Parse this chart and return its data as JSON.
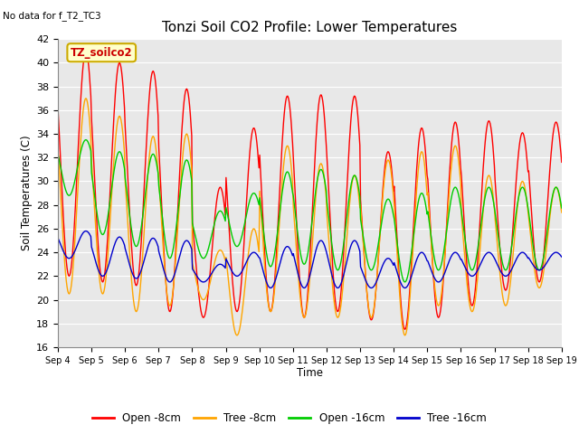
{
  "title": "Tonzi Soil CO2 Profile: Lower Temperatures",
  "annotation": "No data for f_T2_TC3",
  "legend_box_label": "TZ_soilco2",
  "ylabel": "Soil Temperatures (C)",
  "xlabel": "Time",
  "ylim": [
    16,
    42
  ],
  "yticks": [
    16,
    18,
    20,
    22,
    24,
    26,
    28,
    30,
    32,
    34,
    36,
    38,
    40,
    42
  ],
  "bg_color": "#e8e8e8",
  "fig_bg": "#ffffff",
  "series": {
    "open_8cm": {
      "color": "#ff0000",
      "label": "Open -8cm"
    },
    "tree_8cm": {
      "color": "#ffa500",
      "label": "Tree -8cm"
    },
    "open_16cm": {
      "color": "#00cc00",
      "label": "Open -16cm"
    },
    "tree_16cm": {
      "color": "#0000cc",
      "label": "Tree -16cm"
    }
  },
  "x_labels": [
    "Sep 4",
    "Sep 5",
    "Sep 6",
    "Sep 7",
    "Sep 8",
    "Sep 9",
    "Sep 10",
    "Sep 11",
    "Sep 12",
    "Sep 13",
    "Sep 14",
    "Sep 15",
    "Sep 16",
    "Sep 17",
    "Sep 18",
    "Sep 19"
  ],
  "n_days": 15,
  "pts_per_day": 48,
  "open_8cm_peaks": [
    41.0,
    40.0,
    39.3,
    37.8,
    29.5,
    34.5,
    37.2,
    37.3,
    37.2,
    32.5,
    34.5,
    35.0,
    35.1,
    34.1,
    35.0
  ],
  "open_8cm_troughs": [
    22.0,
    21.5,
    21.2,
    19.0,
    18.5,
    19.0,
    19.0,
    18.5,
    19.0,
    18.3,
    17.5,
    18.5,
    19.5,
    20.8,
    21.5
  ],
  "tree_8cm_peaks": [
    37.0,
    35.5,
    33.8,
    34.0,
    24.2,
    26.0,
    33.0,
    31.5,
    30.5,
    31.8,
    32.5,
    33.0,
    30.5,
    30.0,
    29.5
  ],
  "tree_8cm_troughs": [
    20.5,
    20.5,
    19.0,
    19.5,
    20.0,
    17.0,
    19.0,
    18.5,
    18.5,
    18.5,
    17.0,
    19.5,
    19.0,
    19.5,
    21.0
  ],
  "open_16cm_peaks": [
    33.5,
    32.5,
    32.3,
    31.8,
    27.5,
    29.0,
    30.8,
    31.0,
    30.5,
    28.5,
    29.0,
    29.5,
    29.5,
    29.5,
    29.5
  ],
  "open_16cm_troughs": [
    28.8,
    25.5,
    24.5,
    23.5,
    23.5,
    24.5,
    22.8,
    23.0,
    22.5,
    22.5,
    21.5,
    22.5,
    22.5,
    22.5,
    22.5
  ],
  "tree_16cm_peaks": [
    25.8,
    25.3,
    25.2,
    25.0,
    23.0,
    24.0,
    24.5,
    25.0,
    25.0,
    23.5,
    24.0,
    24.0,
    24.0,
    24.0,
    24.0
  ],
  "tree_16cm_troughs": [
    23.5,
    22.0,
    21.8,
    21.5,
    21.5,
    22.0,
    21.0,
    21.0,
    21.0,
    21.0,
    21.0,
    21.5,
    22.0,
    22.0,
    22.5
  ]
}
